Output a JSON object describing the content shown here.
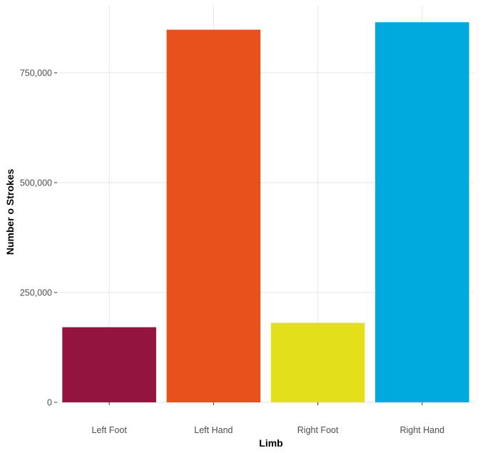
{
  "chart_data": {
    "type": "bar",
    "title": "",
    "xlabel": "Limb",
    "ylabel": "Number o Strokes",
    "categories": [
      "Left Foot",
      "Left Hand",
      "Right Foot",
      "Right Hand"
    ],
    "values": [
      171000,
      848000,
      181000,
      865000
    ],
    "colors": [
      "#93153f",
      "#e8501c",
      "#e3df1b",
      "#00aadf"
    ],
    "ylim": [
      0,
      900000
    ],
    "yticks": [
      0,
      250000,
      500000,
      750000
    ],
    "ytick_labels": [
      "0",
      "250,000",
      "500,000",
      "750,000"
    ],
    "grid": true,
    "legend": "none"
  }
}
